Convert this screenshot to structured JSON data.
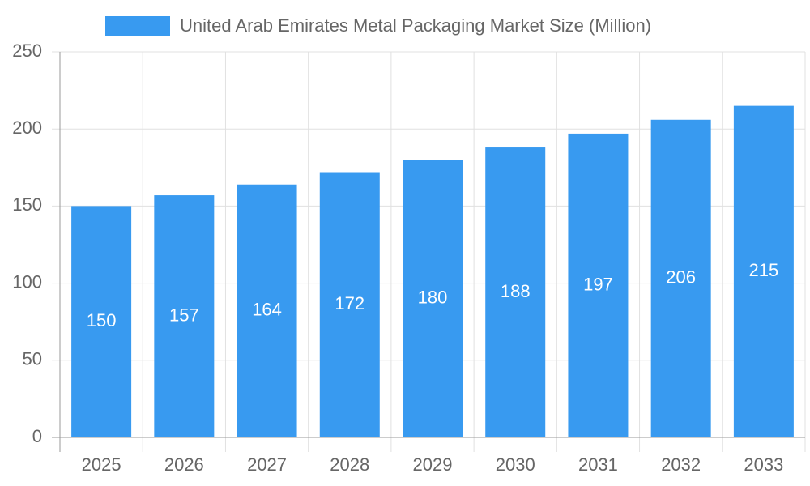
{
  "chart_data": {
    "type": "bar",
    "categories": [
      "2025",
      "2026",
      "2027",
      "2028",
      "2029",
      "2030",
      "2031",
      "2032",
      "2033"
    ],
    "series": [
      {
        "name": "United Arab Emirates Metal Packaging Market Size (Million)",
        "color": "#389af0",
        "values": [
          150,
          157,
          164,
          172,
          180,
          188,
          197,
          206,
          215
        ]
      }
    ],
    "ylim": [
      0,
      250
    ],
    "yticks": [
      0,
      50,
      100,
      150,
      200,
      250
    ],
    "grid": true,
    "legend": "top"
  }
}
